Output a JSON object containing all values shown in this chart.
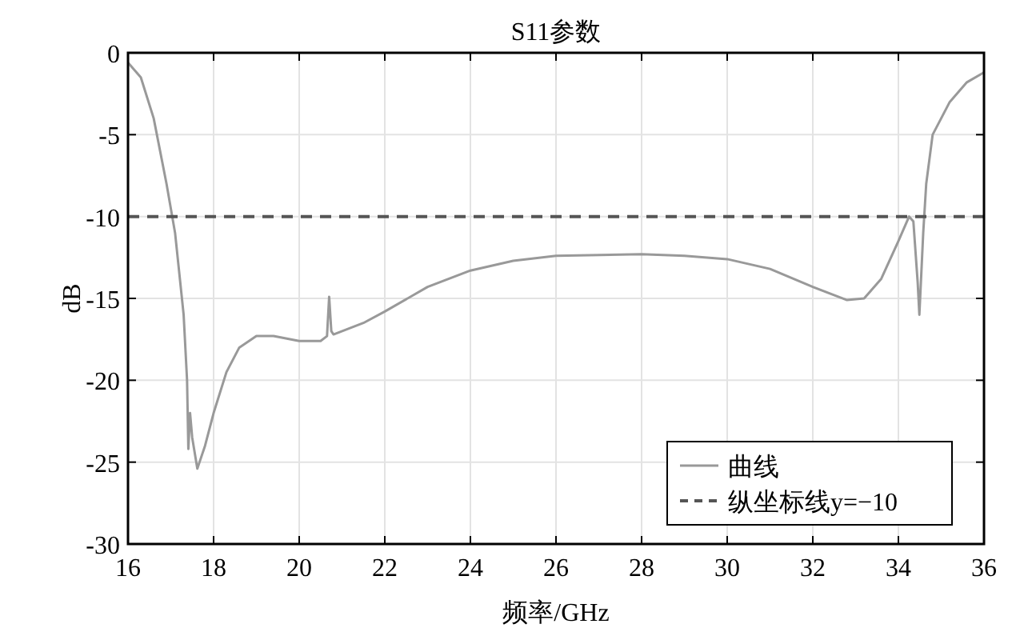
{
  "chart_data": {
    "type": "line",
    "title": "S11参数",
    "xlabel": "频率/GHz",
    "ylabel": "dB",
    "xlim": [
      16,
      36
    ],
    "xticks": [
      16,
      18,
      20,
      22,
      24,
      26,
      28,
      30,
      32,
      34,
      36
    ],
    "ylim": [
      -30,
      0
    ],
    "yticks": [
      -30,
      -25,
      -20,
      -15,
      -10,
      -5,
      0
    ],
    "grid": true,
    "legend": "bottom right",
    "series": [
      {
        "name": "曲线",
        "color": "#999999",
        "line_style": "solid",
        "x": [
          16,
          16.3,
          16.6,
          16.9,
          17.1,
          17.3,
          17.38,
          17.41,
          17.45,
          17.5,
          17.62,
          17.8,
          18.0,
          18.3,
          18.6,
          19.0,
          19.4,
          20.0,
          20.5,
          20.65,
          20.7,
          20.75,
          20.8,
          21.5,
          22,
          23,
          24,
          25,
          26,
          28,
          29,
          30,
          31,
          32,
          32.8,
          33.2,
          33.6,
          34,
          34.25,
          34.35,
          34.45,
          34.49,
          34.58,
          34.65,
          34.8,
          35.2,
          35.6,
          36
        ],
        "values": [
          -0.6,
          -1.5,
          -4,
          -8,
          -11,
          -16,
          -20,
          -24.2,
          -22,
          -23.5,
          -25.4,
          -24,
          -22,
          -19.5,
          -18,
          -17.3,
          -17.3,
          -17.6,
          -17.6,
          -17.3,
          -14.9,
          -17,
          -17.2,
          -16.5,
          -15.8,
          -14.3,
          -13.3,
          -12.7,
          -12.4,
          -12.3,
          -12.4,
          -12.6,
          -13.2,
          -14.3,
          -15.1,
          -15,
          -13.8,
          -11.5,
          -10,
          -10.3,
          -14,
          -16,
          -11,
          -8,
          -5,
          -3,
          -1.8,
          -1.2
        ]
      },
      {
        "name": "纵坐标线y=−10",
        "color": "#555555",
        "line_style": "dashed",
        "x": [
          16,
          36
        ],
        "values": [
          -10,
          -10
        ]
      }
    ]
  }
}
